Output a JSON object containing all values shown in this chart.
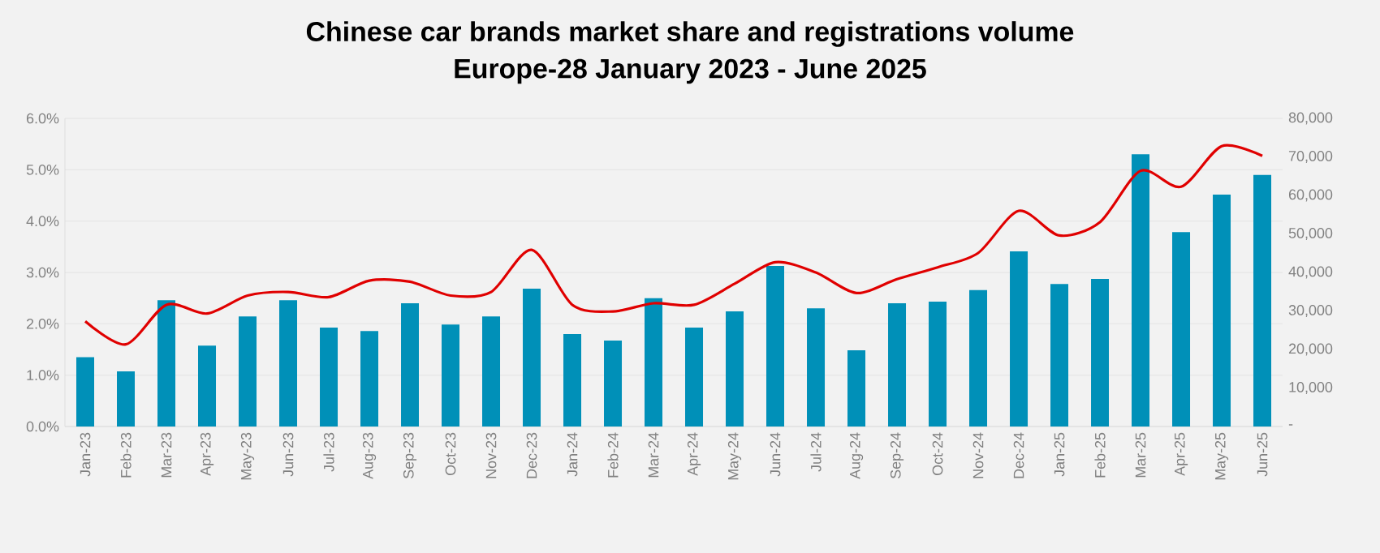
{
  "chart_data": {
    "type": "bar",
    "title": "Chinese car brands market share and registrations volume",
    "subtitle": "Europe-28 January 2023 - June 2025",
    "categories": [
      "Jan-23",
      "Feb-23",
      "Mar-23",
      "Apr-23",
      "May-23",
      "Jun-23",
      "Jul-23",
      "Aug-23",
      "Sep-23",
      "Oct-23",
      "Nov-23",
      "Dec-23",
      "Jan-24",
      "Feb-24",
      "Mar-24",
      "Apr-24",
      "May-24",
      "Jun-24",
      "Jul-24",
      "Aug-24",
      "Sep-24",
      "Oct-24",
      "Nov-24",
      "Dec-24",
      "Jan-25",
      "Feb-25",
      "Mar-25",
      "Apr-25",
      "May-25",
      "Jun-25"
    ],
    "series": [
      {
        "axis": "y2",
        "color": "#0090b8",
        "values": [
          18000,
          14300,
          32800,
          21000,
          28600,
          32800,
          25700,
          24800,
          32000,
          26500,
          28600,
          35800,
          24000,
          22300,
          33300,
          25700,
          29900,
          41700,
          30700,
          19800,
          32000,
          32400,
          35400,
          45500,
          37000,
          38300,
          70700,
          50500,
          60200,
          65300
        ]
      },
      {
        "type": "line",
        "color": "#e00000",
        "line_style": "solid",
        "marker": "none",
        "values": [
          2.05,
          1.6,
          2.37,
          2.2,
          2.55,
          2.62,
          2.52,
          2.84,
          2.82,
          2.55,
          2.62,
          3.44,
          2.37,
          2.24,
          2.4,
          2.37,
          2.78,
          3.2,
          3.0,
          2.6,
          2.87,
          3.1,
          3.38,
          4.2,
          3.72,
          3.98,
          4.98,
          4.67,
          5.46,
          5.27
        ]
      }
    ],
    "ylim": [
      0,
      6
    ],
    "yticks": [
      {
        "value": 0,
        "label": "0.0%"
      },
      {
        "value": 1,
        "label": "1.0%"
      },
      {
        "value": 2,
        "label": "2.0%"
      },
      {
        "value": 3,
        "label": "3.0%"
      },
      {
        "value": 4,
        "label": "4.0%"
      },
      {
        "value": 5,
        "label": "5.0%"
      },
      {
        "value": 6,
        "label": "6.0%"
      }
    ],
    "y2lim": [
      0,
      80000
    ],
    "y2ticks": [
      {
        "value": 0,
        "label": "-"
      },
      {
        "value": 10000,
        "label": "10,000"
      },
      {
        "value": 20000,
        "label": "20,000"
      },
      {
        "value": 30000,
        "label": "30,000"
      },
      {
        "value": 40000,
        "label": "40,000"
      },
      {
        "value": 50000,
        "label": "50,000"
      },
      {
        "value": 60000,
        "label": "60,000"
      },
      {
        "value": 70000,
        "label": "70,000"
      },
      {
        "value": 80000,
        "label": "80,000"
      }
    ],
    "grid": "y"
  }
}
